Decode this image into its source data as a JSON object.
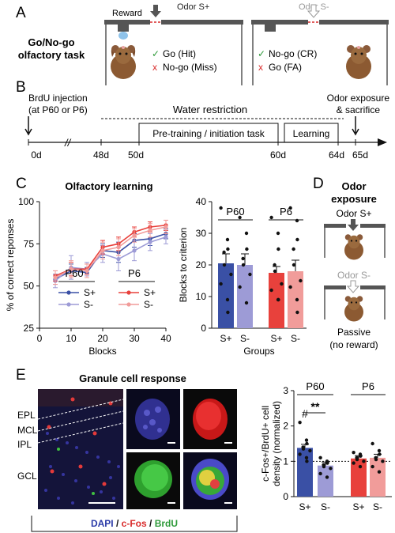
{
  "panelA": {
    "label": "A",
    "task_title_1": "Go/No-go",
    "task_title_2": "olfactory task",
    "reward_label": "Reward",
    "odor_plus": "Odor S+",
    "odor_minus": "Odor S-",
    "check_symbol": "✓",
    "cross_symbol": "x",
    "go_hit": "Go (Hit)",
    "nogo_miss": "No-go (Miss)",
    "nogo_cr": "No-go (CR)",
    "go_fa": "Go (FA)"
  },
  "panelB": {
    "label": "B",
    "brdu_1": "BrdU injection",
    "brdu_2": "(at P60 or P6)",
    "water_restriction": "Water restriction",
    "pretraining": "Pre-training / initiation task",
    "learning": "Learning",
    "odor_exposure_1": "Odor exposure",
    "odor_exposure_2": "& sacrifice",
    "days": [
      "0d",
      "48d",
      "50d",
      "60d",
      "64d",
      "65d"
    ],
    "break_mark": "//"
  },
  "panelC": {
    "label": "C",
    "title": "Olfactory learning",
    "chart_data": [
      {
        "type": "line",
        "title": "Olfactory learning",
        "xlabel": "Blocks",
        "ylabel": "% of correct reponses",
        "x": [
          5,
          10,
          15,
          20,
          25,
          30,
          35,
          40
        ],
        "xlim": [
          0,
          40
        ],
        "ylim": [
          25,
          100
        ],
        "xticks": [
          0,
          10,
          20,
          30,
          40
        ],
        "yticks": [
          25,
          50,
          75,
          100
        ],
        "legend_groups": [
          "P60",
          "P6"
        ],
        "series": [
          {
            "group": "P60",
            "name": "S+",
            "color": "#3a50a5",
            "values": [
              54,
              59,
              58,
              71,
              70,
              77,
              78,
              81
            ],
            "err": [
              3,
              4,
              3,
              4,
              6,
              4,
              4,
              3
            ]
          },
          {
            "group": "P60",
            "name": "S-",
            "color": "#9d9bd6",
            "values": [
              53,
              61,
              60,
              69,
              66,
              71,
              76,
              79
            ],
            "err": [
              4,
              7,
              4,
              5,
              7,
              6,
              5,
              4
            ]
          },
          {
            "group": "P6",
            "name": "S+",
            "color": "#e8413c",
            "values": [
              56,
              60,
              60,
              73,
              75,
              82,
              85,
              86
            ],
            "err": [
              3,
              4,
              3,
              4,
              4,
              3,
              3,
              3
            ]
          },
          {
            "group": "P6",
            "name": "S-",
            "color": "#f19c9a",
            "values": [
              55,
              60,
              59,
              71,
              73,
              80,
              83,
              85
            ],
            "err": [
              4,
              5,
              4,
              5,
              5,
              4,
              4,
              4
            ]
          }
        ]
      },
      {
        "type": "bar",
        "xlabel": "Groups",
        "ylabel": "Blocks to criterion",
        "ylim": [
          0,
          40
        ],
        "yticks": [
          0,
          10,
          20,
          30,
          40
        ],
        "group_labels": [
          "P60",
          "P6"
        ],
        "categories": [
          "S+",
          "S-",
          "S+",
          "S-"
        ],
        "values": [
          20.5,
          20,
          17.5,
          18
        ],
        "err": [
          3,
          3.5,
          2,
          3.5
        ],
        "colors": [
          "#3a50a5",
          "#9d9bd6",
          "#e8413c",
          "#f19c9a"
        ],
        "points": [
          [
            38,
            28,
            25,
            24,
            20,
            17,
            14,
            9,
            5
          ],
          [
            35,
            30,
            25,
            22,
            20,
            17,
            13,
            8
          ],
          [
            35,
            30,
            25,
            20,
            18,
            14,
            12,
            9,
            9
          ],
          [
            38,
            34,
            28,
            25,
            20,
            15,
            13,
            9,
            5
          ]
        ]
      }
    ]
  },
  "panelD": {
    "label": "D",
    "title_1": "Odor",
    "title_2": "exposure",
    "odor_plus": "Odor S+",
    "odor_minus": "Odor S-",
    "passive_1": "Passive",
    "passive_2": "(no reward)"
  },
  "panelE": {
    "label": "E",
    "title": "Granule cell response",
    "layers": [
      "EPL",
      "MCL",
      "IPL",
      "GCL"
    ],
    "stain_dapi": "DAPI",
    "stain_sep_1": " / ",
    "stain_cfos": "c-Fos",
    "stain_sep_2": " / ",
    "stain_brdu": "BrdU",
    "chart_data": {
      "type": "bar",
      "ylabel_1": "c-Fos+/BrdU+ cell",
      "ylabel_2": "density (normalized)",
      "ylim": [
        0,
        3
      ],
      "yticks": [
        0,
        1,
        2,
        3
      ],
      "reference_line": 1,
      "group_labels": [
        "P60",
        "P6"
      ],
      "categories": [
        "S+",
        "S-",
        "S+",
        "S-"
      ],
      "values": [
        1.38,
        0.88,
        1.08,
        1.1
      ],
      "err": [
        0.1,
        0.1,
        0.08,
        0.1
      ],
      "colors": [
        "#3a50a5",
        "#9d9bd6",
        "#e8413c",
        "#f19c9a"
      ],
      "points": [
        [
          2.1,
          1.6,
          1.5,
          1.4,
          1.35,
          1.3,
          1.2,
          1.1,
          1.0
        ],
        [
          1.1,
          1.0,
          0.95,
          0.9,
          0.85,
          0.8,
          0.65,
          0.55
        ],
        [
          1.25,
          1.2,
          1.15,
          1.1,
          1.05,
          1.0,
          0.95,
          0.85
        ],
        [
          1.5,
          1.3,
          1.2,
          1.1,
          1.05,
          1.0,
          0.85,
          0.7
        ]
      ],
      "annotations": [
        "#",
        "**"
      ]
    }
  }
}
